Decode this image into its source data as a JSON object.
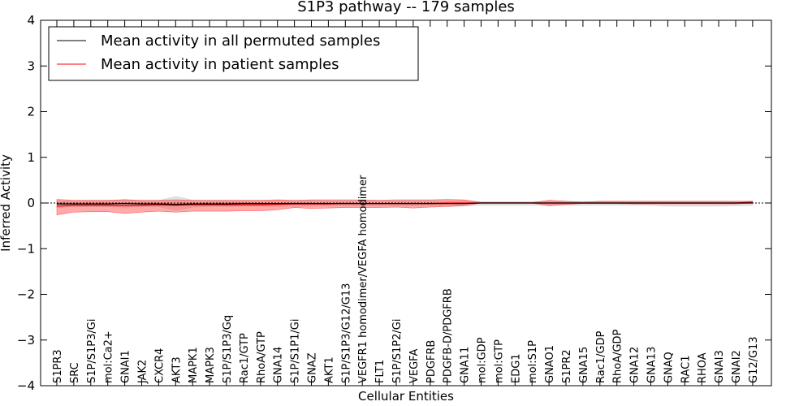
{
  "chart_data": {
    "type": "line",
    "title": "S1P3 pathway -- 179 samples",
    "xlabel": "Cellular Entities",
    "ylabel": "Inferred Activity",
    "ylim": [
      -4,
      4
    ],
    "yticks": [
      "4",
      "3",
      "2",
      "1",
      "0",
      "−1",
      "−2",
      "−3",
      "−4"
    ],
    "ytick_values": [
      4,
      3,
      2,
      1,
      0,
      -1,
      -2,
      -3,
      -4
    ],
    "zero_line": true,
    "legend_position": "top-left",
    "categories": [
      "S1PR3",
      "SRC",
      "S1P/S1P3/Gi",
      "mol:Ca2+",
      "GNAI1",
      "JAK2",
      "CXCR4",
      "AKT3",
      "MAPK1",
      "MAPK3",
      "S1P/S1P3/Gq",
      "Rac1/GTP",
      "RhoA/GTP",
      "GNA14",
      "S1P/S1P1/Gi",
      "GNAZ",
      "AKT1",
      "S1P/S1P3/G12/G13",
      "VEGFR1 homodimer/VEGFA homodimer",
      "FLT1",
      "S1P/S1P2/Gi",
      "VEGFA",
      "PDGFRB",
      "PDGFB-D/PDGFRB",
      "GNA11",
      "mol:GDP",
      "mol:GTP",
      "EDG1",
      "mol:S1P",
      "GNAO1",
      "S1PR2",
      "GNA15",
      "Rac1/GDP",
      "RhoA/GDP",
      "GNA12",
      "GNA13",
      "GNAQ",
      "RAC1",
      "RHOA",
      "GNAI3",
      "GNAI2",
      "G12/G13"
    ],
    "series": [
      {
        "name": "Mean activity in all permuted samples",
        "color": "#000000",
        "values": [
          -0.02,
          -0.02,
          -0.02,
          -0.02,
          -0.01,
          -0.02,
          -0.02,
          -0.03,
          -0.02,
          -0.02,
          -0.02,
          -0.01,
          -0.01,
          -0.01,
          -0.01,
          -0.01,
          -0.01,
          -0.01,
          -0.01,
          -0.01,
          -0.01,
          -0.01,
          -0.01,
          -0.01,
          -0.01,
          0.0,
          0.0,
          0.0,
          0.0,
          0.0,
          0.0,
          0.0,
          0.0,
          0.0,
          0.0,
          0.0,
          0.0,
          0.0,
          0.0,
          0.0,
          0.0,
          0.0
        ],
        "band_upper": [
          0.06,
          0.04,
          0.05,
          0.05,
          0.08,
          0.05,
          0.05,
          0.14,
          0.06,
          0.05,
          0.05,
          0.05,
          0.05,
          0.06,
          0.05,
          0.06,
          0.05,
          0.05,
          0.05,
          0.05,
          0.05,
          0.05,
          0.05,
          0.05,
          0.05,
          0.03,
          0.03,
          0.03,
          0.03,
          0.03,
          0.03,
          0.03,
          0.03,
          0.03,
          0.03,
          0.03,
          0.03,
          0.03,
          0.03,
          0.03,
          0.03,
          0.03
        ],
        "band_lower": [
          -0.1,
          -0.08,
          -0.08,
          -0.08,
          -0.09,
          -0.08,
          -0.08,
          -0.16,
          -0.09,
          -0.08,
          -0.08,
          -0.07,
          -0.07,
          -0.08,
          -0.07,
          -0.07,
          -0.06,
          -0.06,
          -0.06,
          -0.06,
          -0.06,
          -0.06,
          -0.06,
          -0.06,
          -0.06,
          -0.05,
          -0.05,
          -0.05,
          -0.05,
          -0.05,
          -0.05,
          -0.05,
          -0.05,
          -0.05,
          -0.05,
          -0.05,
          -0.07,
          -0.07,
          -0.07,
          -0.07,
          -0.06,
          -0.05
        ]
      },
      {
        "name": "Mean activity in patient samples",
        "color": "#ff0000",
        "values": [
          -0.07,
          -0.05,
          -0.05,
          -0.05,
          -0.06,
          -0.05,
          -0.04,
          -0.05,
          -0.04,
          -0.04,
          -0.04,
          -0.04,
          -0.04,
          -0.03,
          -0.02,
          -0.02,
          -0.02,
          -0.01,
          -0.01,
          -0.01,
          -0.01,
          -0.01,
          -0.01,
          0.0,
          0.0,
          0.0,
          0.0,
          0.0,
          0.0,
          0.0,
          0.0,
          0.0,
          0.0,
          0.0,
          0.0,
          0.0,
          0.0,
          0.0,
          0.0,
          0.0,
          0.0,
          0.02
        ],
        "band_upper": [
          0.08,
          0.06,
          0.06,
          0.06,
          0.07,
          0.06,
          0.06,
          0.07,
          0.06,
          0.06,
          0.06,
          0.06,
          0.06,
          0.07,
          0.06,
          0.07,
          0.07,
          0.07,
          0.07,
          0.06,
          0.07,
          0.07,
          0.07,
          0.08,
          0.07,
          0.01,
          0.01,
          0.01,
          0.01,
          0.06,
          0.04,
          0.02,
          0.04,
          0.04,
          0.04,
          0.04,
          0.04,
          0.04,
          0.04,
          0.04,
          0.04,
          0.04
        ],
        "band_lower": [
          -0.26,
          -0.2,
          -0.19,
          -0.19,
          -0.23,
          -0.2,
          -0.18,
          -0.2,
          -0.18,
          -0.18,
          -0.18,
          -0.17,
          -0.17,
          -0.15,
          -0.1,
          -0.12,
          -0.11,
          -0.1,
          -0.1,
          -0.1,
          -0.09,
          -0.11,
          -0.09,
          -0.08,
          -0.06,
          0.0,
          0.0,
          0.0,
          0.0,
          -0.06,
          -0.03,
          -0.01,
          -0.01,
          -0.01,
          -0.02,
          -0.02,
          -0.02,
          -0.02,
          -0.02,
          -0.02,
          -0.02,
          0.0
        ]
      }
    ]
  }
}
